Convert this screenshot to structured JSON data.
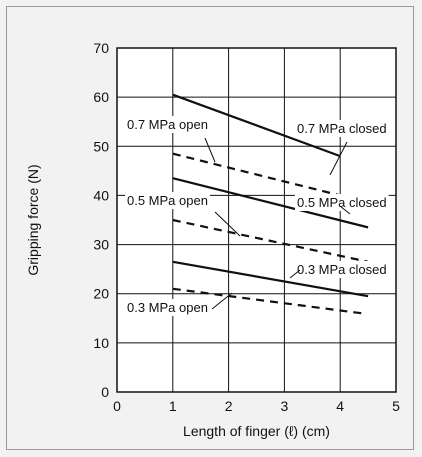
{
  "chart_data": {
    "type": "line",
    "xlabel": "Length of finger (ℓ) (cm)",
    "ylabel": "Gripping force (N)",
    "xlim": [
      0,
      5
    ],
    "ylim": [
      0,
      70
    ],
    "xticks": [
      "0",
      "1",
      "2",
      "3",
      "4",
      "5"
    ],
    "yticks": [
      "0",
      "10",
      "20",
      "30",
      "40",
      "50",
      "60",
      "70"
    ],
    "grid": true,
    "series": [
      {
        "name": "0.7 MPa closed",
        "style": "solid",
        "x": [
          1,
          4
        ],
        "y": [
          60.5,
          48
        ]
      },
      {
        "name": "0.7 MPa open",
        "style": "dashed",
        "x": [
          1,
          4
        ],
        "y": [
          48.5,
          40
        ]
      },
      {
        "name": "0.5 MPa closed",
        "style": "solid",
        "x": [
          1,
          4.5
        ],
        "y": [
          43.5,
          33.5
        ]
      },
      {
        "name": "0.5 MPa open",
        "style": "dashed",
        "x": [
          1,
          4.5
        ],
        "y": [
          35,
          26.5
        ]
      },
      {
        "name": "0.3 MPa closed",
        "style": "solid",
        "x": [
          1,
          4.5
        ],
        "y": [
          26.5,
          19.5
        ]
      },
      {
        "name": "0.3 MPa open",
        "style": "dashed",
        "x": [
          1,
          4.4
        ],
        "y": [
          21,
          16
        ]
      }
    ]
  }
}
